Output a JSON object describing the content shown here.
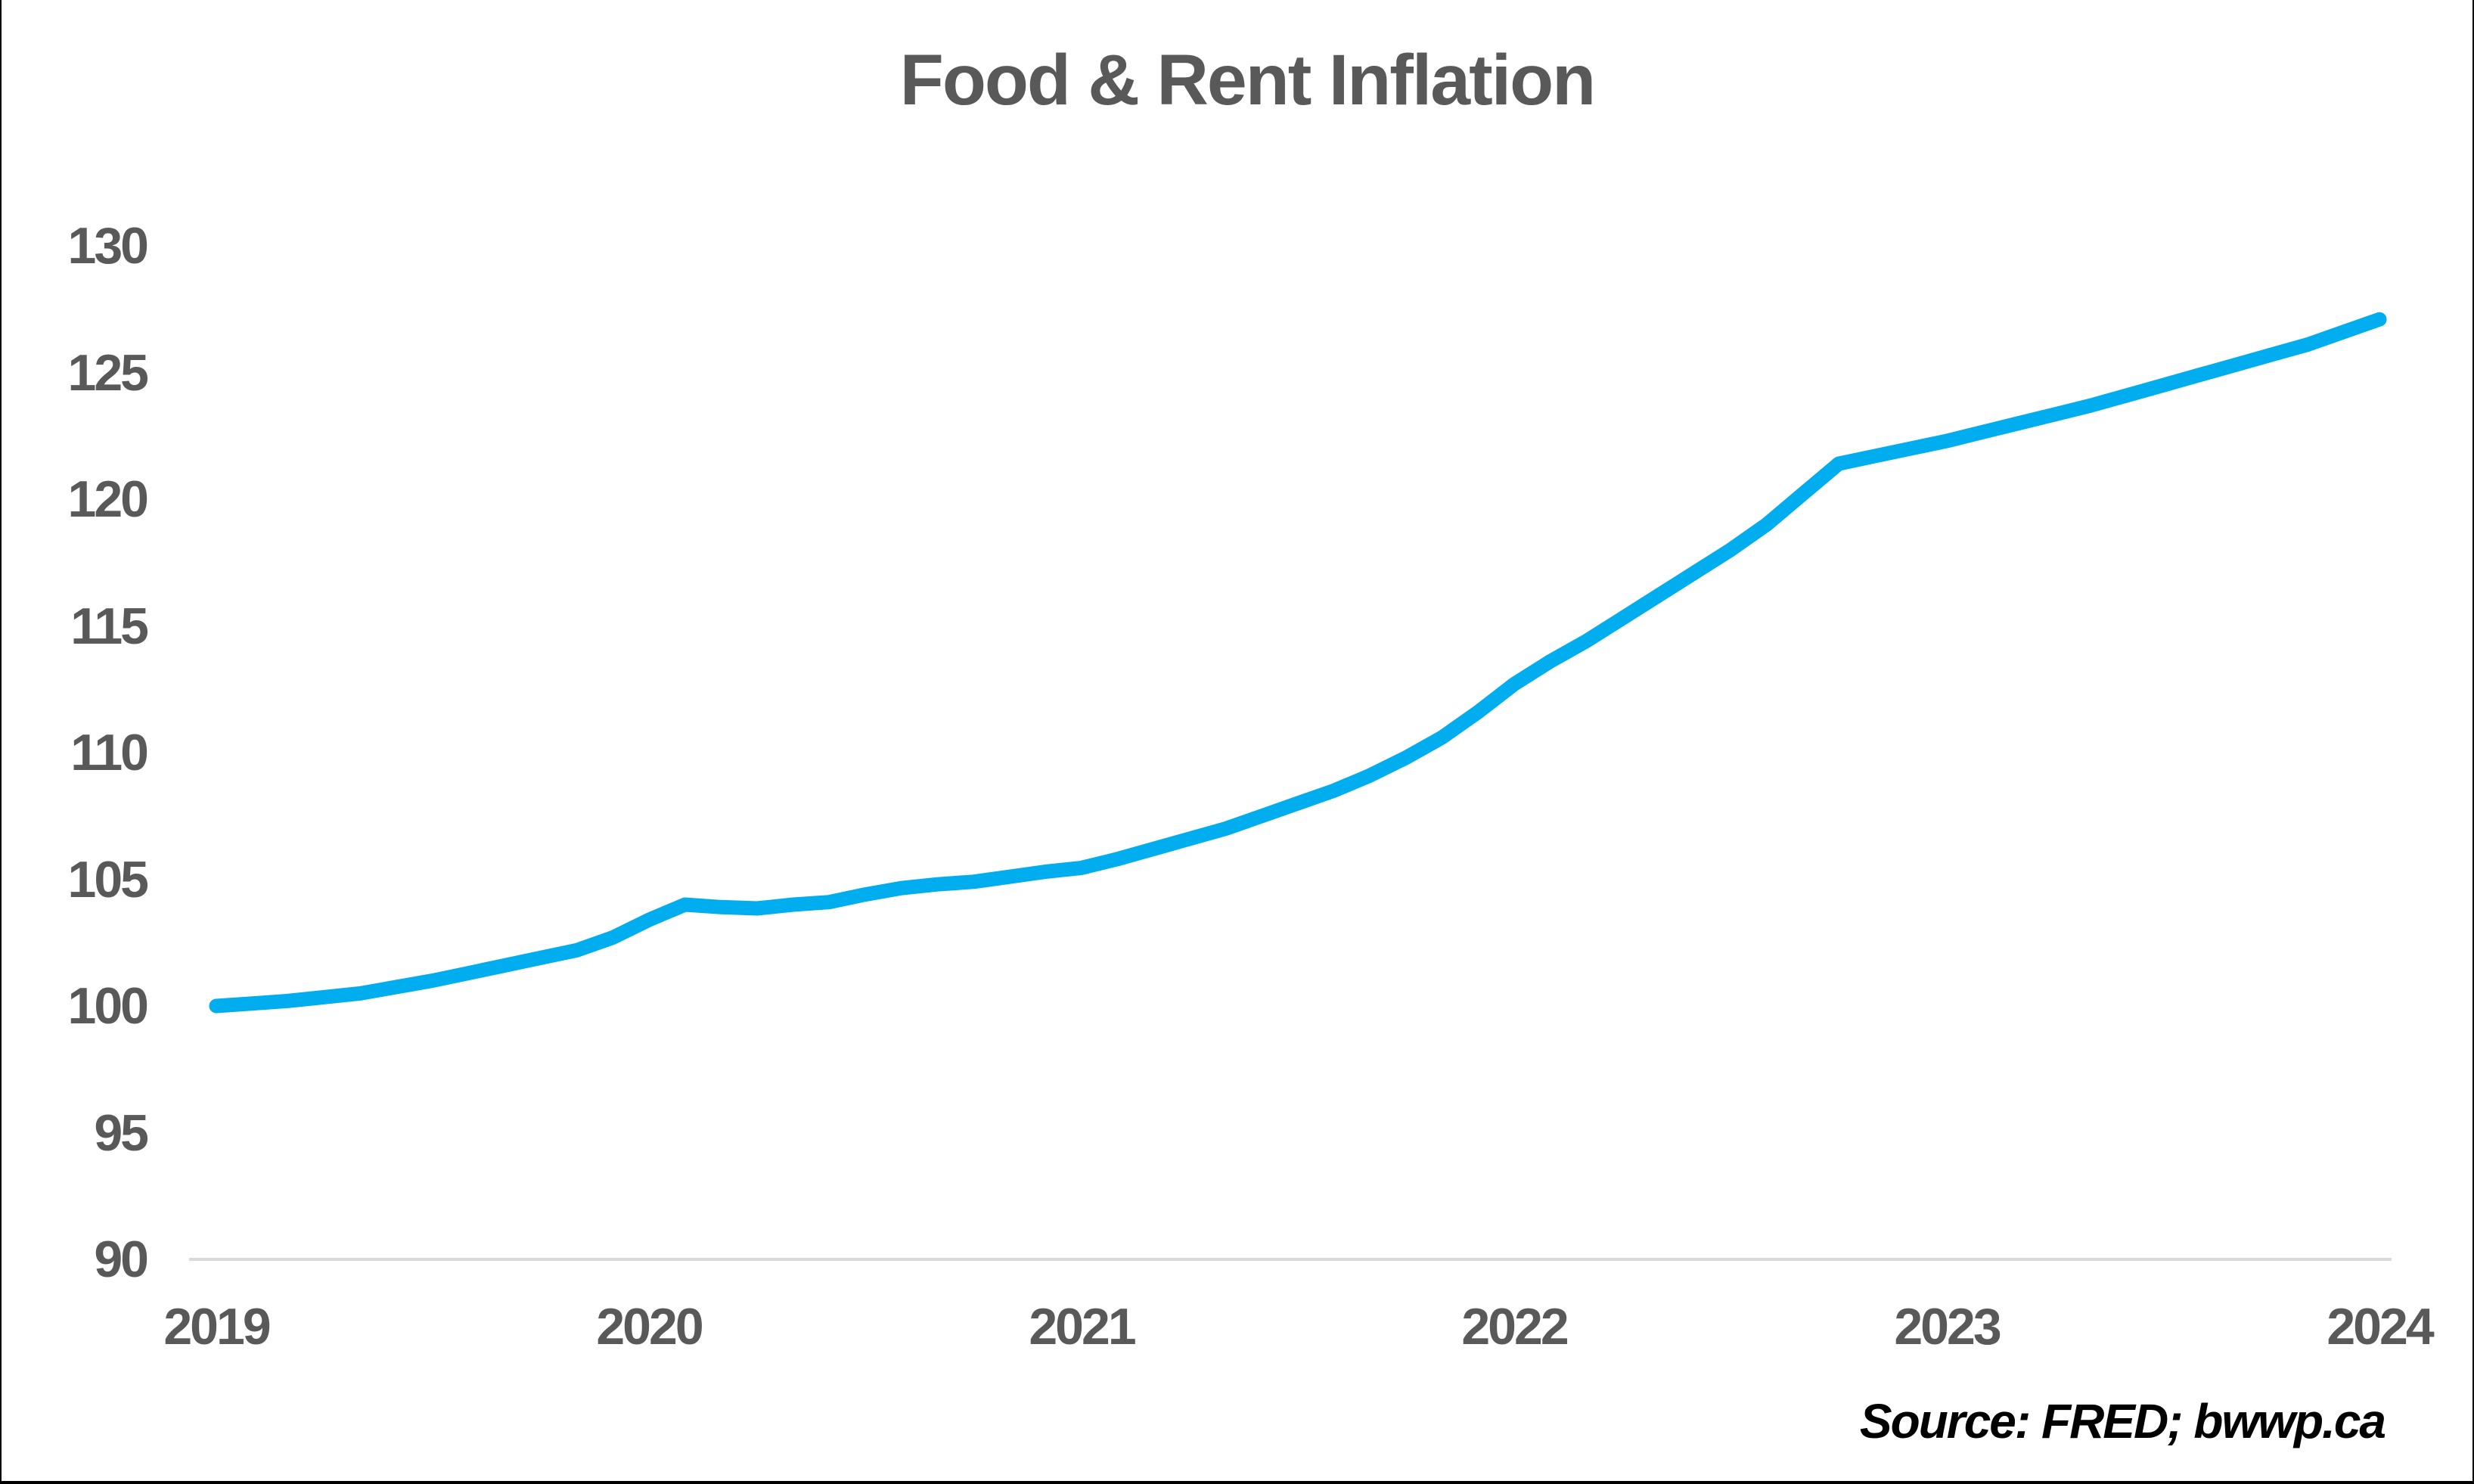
{
  "chart_data": {
    "type": "line",
    "title": "Food & Rent Inflation",
    "source_note": "Source: FRED; bwwp.ca",
    "x_tick_labels": [
      "2019",
      "2020",
      "2021",
      "2022",
      "2023",
      "2024"
    ],
    "y_tick_labels": [
      "130",
      "125",
      "120",
      "115",
      "110",
      "105",
      "100",
      "95",
      "90"
    ],
    "y_tick_values": [
      130,
      125,
      120,
      115,
      110,
      105,
      100,
      95,
      90
    ],
    "ylim": [
      90,
      130
    ],
    "x_start": "2019-01",
    "x_end": "2024-01",
    "frequency": "monthly",
    "legend": "none",
    "grid": "baseline-only",
    "line_color": "#00AEEF",
    "label_color": "#595959",
    "gridline_color": "#D9D9D9",
    "values": [
      100.0,
      100.1,
      100.2,
      100.35,
      100.5,
      100.75,
      101.0,
      101.3,
      101.6,
      101.9,
      102.2,
      102.7,
      103.4,
      104.0,
      103.9,
      103.85,
      104.0,
      104.1,
      104.4,
      104.65,
      104.8,
      104.9,
      105.1,
      105.3,
      105.45,
      105.8,
      106.2,
      106.6,
      107.0,
      107.5,
      108.0,
      108.5,
      109.1,
      109.8,
      110.6,
      111.6,
      112.7,
      113.6,
      114.4,
      115.3,
      116.2,
      117.1,
      118.0,
      119.0,
      120.2,
      121.4,
      121.7,
      122.0,
      122.3,
      122.65,
      123.0,
      123.35,
      123.7,
      124.1,
      124.5,
      124.9,
      125.3,
      125.7,
      126.1,
      126.6,
      127.1
    ]
  }
}
